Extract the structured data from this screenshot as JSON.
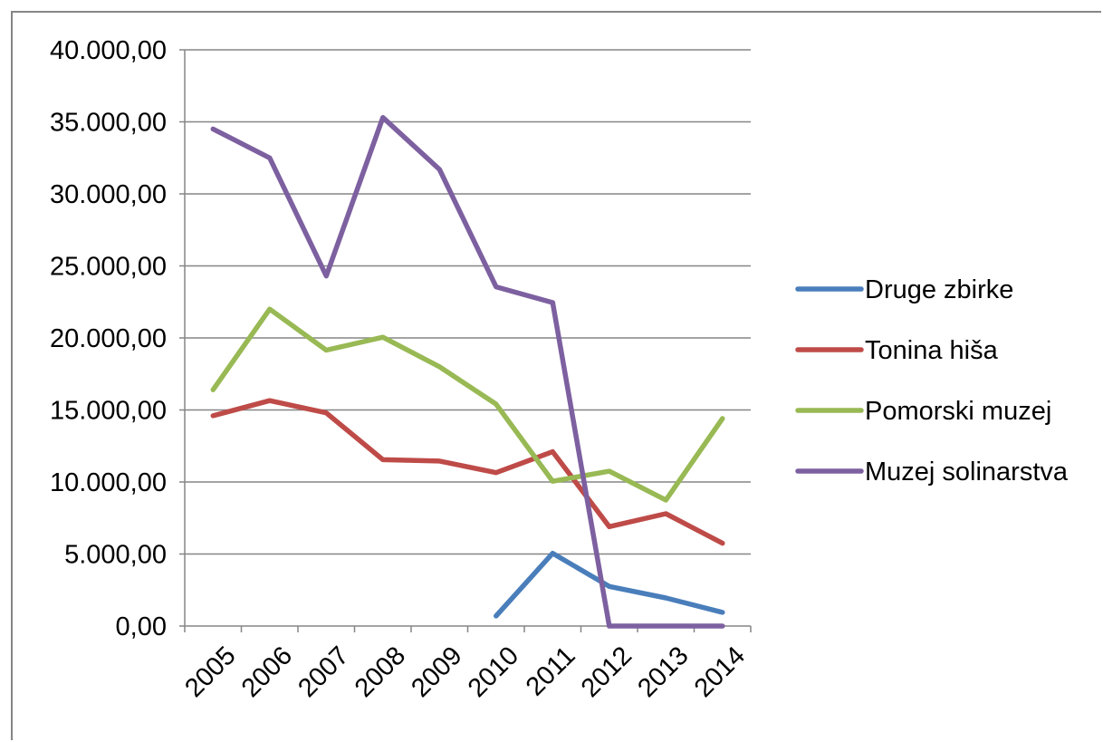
{
  "chart_data": {
    "type": "line",
    "title": "",
    "xlabel": "",
    "ylabel": "",
    "categories": [
      "2005",
      "2006",
      "2007",
      "2008",
      "2009",
      "2010",
      "2011",
      "2012",
      "2013",
      "2014"
    ],
    "ylim": [
      0,
      40000
    ],
    "y_ticks": [
      0,
      5000,
      10000,
      15000,
      20000,
      25000,
      30000,
      35000,
      40000
    ],
    "y_tick_labels": [
      "0,00",
      "5.000,00",
      "10.000,00",
      "15.000,00",
      "20.000,00",
      "25.000,00",
      "30.000,00",
      "35.000,00",
      "40.000,00"
    ],
    "grid": "horizontal",
    "legend_position": "right",
    "series": [
      {
        "name": "Druge zbirke",
        "color": "#4a7ebb",
        "values": [
          null,
          null,
          null,
          null,
          null,
          700,
          5050,
          2750,
          1950,
          950
        ]
      },
      {
        "name": "Tonina hiša",
        "color": "#be4b48",
        "values": [
          14600,
          15650,
          14800,
          11550,
          11450,
          10650,
          12100,
          6900,
          7800,
          5750
        ]
      },
      {
        "name": "Pomorski muzej",
        "color": "#98b954",
        "values": [
          16400,
          22000,
          19150,
          20050,
          18000,
          15400,
          10050,
          10750,
          8750,
          14400
        ]
      },
      {
        "name": "Muzej solinarstva",
        "color": "#7d60a0",
        "values": [
          34500,
          32500,
          24300,
          35300,
          31700,
          23550,
          22450,
          0,
          0,
          0
        ]
      }
    ]
  }
}
